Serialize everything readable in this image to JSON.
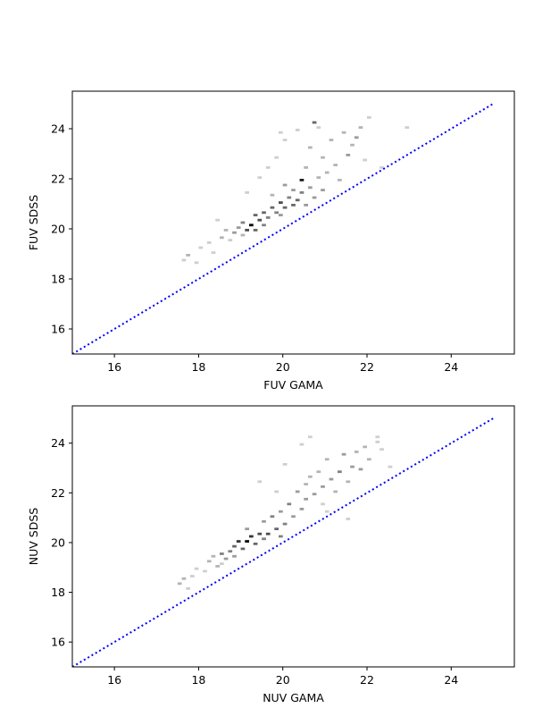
{
  "chart_data": [
    {
      "type": "heatmap",
      "xlabel": "FUV GAMA",
      "ylabel": "FUV SDSS",
      "xlim": [
        15,
        25.5
      ],
      "ylim": [
        15,
        25.5
      ],
      "xticks": [
        16,
        18,
        20,
        22,
        24
      ],
      "yticks": [
        16,
        18,
        20,
        22,
        24
      ],
      "tick_labels_x": [
        "16",
        "18",
        "20",
        "22",
        "24"
      ],
      "tick_labels_y": [
        "16",
        "18",
        "20",
        "22",
        "24"
      ],
      "colormap": "Greys",
      "reference_line": {
        "x": [
          15,
          25
        ],
        "y": [
          15,
          25
        ],
        "style": "dotted",
        "color": "#0000ff"
      },
      "bins": [
        [
          17.6,
          18.7,
          1
        ],
        [
          17.7,
          18.9,
          2
        ],
        [
          17.9,
          18.6,
          1
        ],
        [
          18.0,
          19.2,
          1
        ],
        [
          18.2,
          19.4,
          1
        ],
        [
          18.3,
          19.0,
          1
        ],
        [
          18.4,
          20.3,
          1
        ],
        [
          18.5,
          19.6,
          2
        ],
        [
          18.6,
          19.9,
          2
        ],
        [
          18.7,
          19.5,
          1
        ],
        [
          18.8,
          19.8,
          3
        ],
        [
          18.9,
          20.0,
          3
        ],
        [
          19.0,
          19.7,
          2
        ],
        [
          19.0,
          20.2,
          4
        ],
        [
          19.1,
          19.9,
          6
        ],
        [
          19.2,
          20.1,
          9
        ],
        [
          19.3,
          19.9,
          5
        ],
        [
          19.3,
          20.5,
          5
        ],
        [
          19.4,
          20.3,
          6
        ],
        [
          19.5,
          20.6,
          5
        ],
        [
          19.5,
          20.1,
          4
        ],
        [
          19.6,
          20.4,
          4
        ],
        [
          19.7,
          20.8,
          5
        ],
        [
          19.7,
          21.3,
          2
        ],
        [
          19.8,
          20.6,
          4
        ],
        [
          19.9,
          21.0,
          6
        ],
        [
          19.9,
          20.5,
          3
        ],
        [
          20.0,
          20.8,
          5
        ],
        [
          20.0,
          21.7,
          3
        ],
        [
          20.1,
          21.2,
          4
        ],
        [
          20.2,
          20.9,
          5
        ],
        [
          20.2,
          21.5,
          3
        ],
        [
          20.3,
          21.1,
          5
        ],
        [
          20.4,
          21.9,
          8
        ],
        [
          20.4,
          21.4,
          4
        ],
        [
          20.5,
          20.9,
          3
        ],
        [
          20.5,
          22.4,
          2
        ],
        [
          20.6,
          21.6,
          3
        ],
        [
          20.6,
          23.2,
          2
        ],
        [
          20.7,
          21.2,
          3
        ],
        [
          20.7,
          24.2,
          5
        ],
        [
          20.8,
          22.0,
          2
        ],
        [
          20.9,
          21.5,
          3
        ],
        [
          20.9,
          22.8,
          2
        ],
        [
          21.0,
          22.2,
          2
        ],
        [
          21.1,
          23.5,
          2
        ],
        [
          21.2,
          22.5,
          2
        ],
        [
          21.3,
          21.9,
          2
        ],
        [
          21.4,
          23.8,
          2
        ],
        [
          21.5,
          22.9,
          3
        ],
        [
          21.6,
          23.3,
          2
        ],
        [
          21.7,
          23.6,
          3
        ],
        [
          21.8,
          24.0,
          2
        ],
        [
          21.9,
          22.7,
          1
        ],
        [
          22.0,
          24.4,
          1
        ],
        [
          19.8,
          22.8,
          1
        ],
        [
          20.0,
          23.5,
          1
        ],
        [
          19.9,
          23.8,
          1
        ],
        [
          20.3,
          23.9,
          1
        ],
        [
          20.8,
          24.0,
          1
        ],
        [
          19.1,
          21.4,
          1
        ],
        [
          19.4,
          22.0,
          1
        ],
        [
          19.6,
          22.4,
          1
        ],
        [
          22.9,
          24.0,
          1
        ],
        [
          22.3,
          22.4,
          1
        ]
      ]
    },
    {
      "type": "heatmap",
      "xlabel": "NUV GAMA",
      "ylabel": "NUV SDSS",
      "xlim": [
        15,
        25.5
      ],
      "ylim": [
        15,
        25.5
      ],
      "xticks": [
        16,
        18,
        20,
        22,
        24
      ],
      "yticks": [
        16,
        18,
        20,
        22,
        24
      ],
      "tick_labels_x": [
        "16",
        "18",
        "20",
        "22",
        "24"
      ],
      "tick_labels_y": [
        "16",
        "18",
        "20",
        "22",
        "24"
      ],
      "colormap": "Greys",
      "reference_line": {
        "x": [
          15,
          25
        ],
        "y": [
          15,
          25
        ],
        "style": "dotted",
        "color": "#0000ff"
      },
      "bins": [
        [
          17.5,
          18.3,
          2
        ],
        [
          17.6,
          18.5,
          2
        ],
        [
          17.8,
          18.6,
          1
        ],
        [
          17.9,
          18.9,
          1
        ],
        [
          18.1,
          18.8,
          1
        ],
        [
          18.2,
          19.2,
          2
        ],
        [
          18.3,
          19.4,
          2
        ],
        [
          18.4,
          19.0,
          2
        ],
        [
          18.5,
          19.5,
          4
        ],
        [
          18.6,
          19.3,
          3
        ],
        [
          18.7,
          19.6,
          4
        ],
        [
          18.8,
          19.8,
          5
        ],
        [
          18.8,
          19.4,
          3
        ],
        [
          18.9,
          20.0,
          7
        ],
        [
          19.0,
          19.7,
          5
        ],
        [
          19.1,
          20.0,
          9
        ],
        [
          19.1,
          20.5,
          3
        ],
        [
          19.2,
          20.2,
          7
        ],
        [
          19.3,
          19.9,
          5
        ],
        [
          19.4,
          20.3,
          6
        ],
        [
          19.5,
          20.1,
          4
        ],
        [
          19.5,
          20.8,
          3
        ],
        [
          19.6,
          20.3,
          6
        ],
        [
          19.7,
          21.0,
          4
        ],
        [
          19.8,
          20.5,
          5
        ],
        [
          19.9,
          20.2,
          4
        ],
        [
          19.9,
          21.2,
          3
        ],
        [
          20.0,
          20.7,
          4
        ],
        [
          20.1,
          21.5,
          4
        ],
        [
          20.2,
          21.0,
          3
        ],
        [
          20.3,
          22.0,
          3
        ],
        [
          20.4,
          21.3,
          3
        ],
        [
          20.5,
          22.3,
          2
        ],
        [
          20.5,
          21.7,
          3
        ],
        [
          20.6,
          22.6,
          2
        ],
        [
          20.7,
          21.9,
          3
        ],
        [
          20.8,
          22.8,
          2
        ],
        [
          20.9,
          22.2,
          3
        ],
        [
          21.0,
          23.3,
          2
        ],
        [
          21.1,
          22.5,
          3
        ],
        [
          21.2,
          22.0,
          2
        ],
        [
          21.3,
          22.8,
          4
        ],
        [
          21.4,
          23.5,
          3
        ],
        [
          21.5,
          22.4,
          2
        ],
        [
          21.6,
          23.0,
          3
        ],
        [
          21.7,
          23.6,
          2
        ],
        [
          21.8,
          22.9,
          3
        ],
        [
          21.9,
          23.8,
          2
        ],
        [
          22.0,
          23.3,
          2
        ],
        [
          22.2,
          24.0,
          1
        ],
        [
          22.3,
          23.7,
          1
        ],
        [
          20.4,
          23.9,
          1
        ],
        [
          20.6,
          24.2,
          1
        ],
        [
          20.0,
          23.1,
          1
        ],
        [
          19.4,
          22.4,
          1
        ],
        [
          19.8,
          22.0,
          1
        ],
        [
          21.5,
          20.9,
          1
        ],
        [
          18.5,
          19.1,
          1
        ],
        [
          22.5,
          23.0,
          1
        ],
        [
          22.2,
          24.2,
          1
        ],
        [
          17.7,
          18.1,
          1
        ],
        [
          21.0,
          21.2,
          1
        ],
        [
          20.9,
          21.5,
          1
        ]
      ]
    }
  ]
}
